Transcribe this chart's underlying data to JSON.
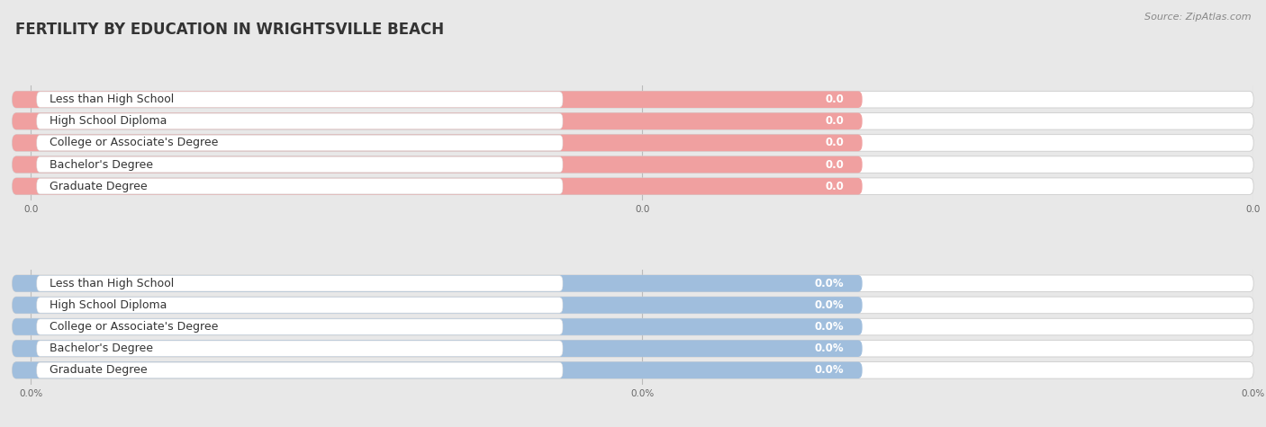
{
  "title": "FERTILITY BY EDUCATION IN WRIGHTSVILLE BEACH",
  "source": "Source: ZipAtlas.com",
  "categories": [
    "Less than High School",
    "High School Diploma",
    "College or Associate's Degree",
    "Bachelor's Degree",
    "Graduate Degree"
  ],
  "top_values": [
    0.0,
    0.0,
    0.0,
    0.0,
    0.0
  ],
  "bottom_values": [
    0.0,
    0.0,
    0.0,
    0.0,
    0.0
  ],
  "top_bar_color": "#f0a0a0",
  "bottom_bar_color": "#a0bedd",
  "background_color": "#e8e8e8",
  "row_bg_color": "#ffffff",
  "title_fontsize": 12,
  "label_fontsize": 9,
  "value_fontsize": 8.5,
  "source_fontsize": 8,
  "figsize": [
    14.06,
    4.75
  ],
  "dpi": 100
}
